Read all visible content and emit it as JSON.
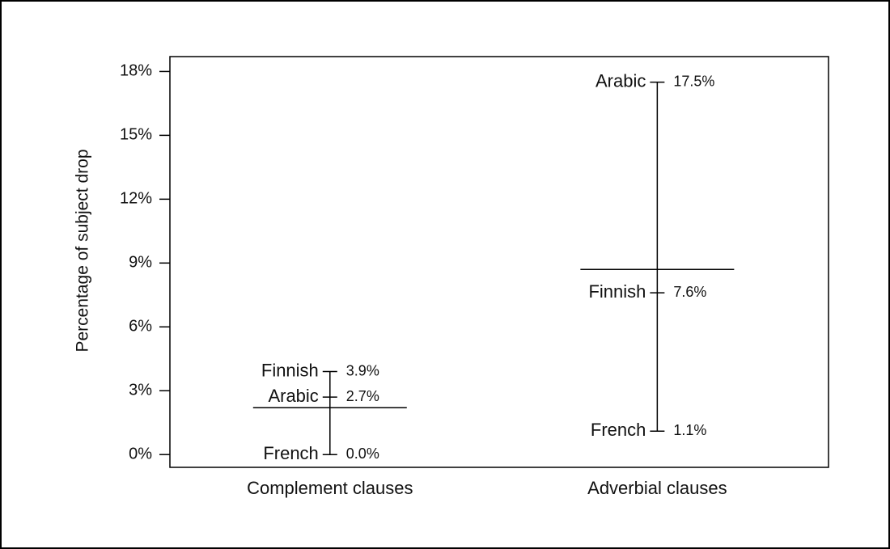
{
  "chart_data": {
    "type": "range",
    "categories": [
      "Complement clauses",
      "Adverbial clauses"
    ],
    "series": [
      {
        "name": "Finnish",
        "values": [
          3.9,
          7.6
        ],
        "value_labels": [
          "3.9%",
          "7.6%"
        ]
      },
      {
        "name": "Arabic",
        "values": [
          2.7,
          17.5
        ],
        "value_labels": [
          "2.7%",
          "17.5%"
        ]
      },
      {
        "name": "French",
        "values": [
          0.0,
          1.1
        ],
        "value_labels": [
          "0.0%",
          "1.1%"
        ]
      }
    ],
    "means": [
      2.2,
      8.7
    ],
    "ylabel": "Percentage of subject drop",
    "ylim": [
      -0.6,
      18.7
    ],
    "yticks": [
      {
        "value": 0,
        "label": "0%"
      },
      {
        "value": 3,
        "label": "3%"
      },
      {
        "value": 6,
        "label": "6%"
      },
      {
        "value": 9,
        "label": "9%"
      },
      {
        "value": 12,
        "label": "12%"
      },
      {
        "value": 15,
        "label": "15%"
      },
      {
        "value": 18,
        "label": "18%"
      }
    ],
    "color": "#000000"
  }
}
